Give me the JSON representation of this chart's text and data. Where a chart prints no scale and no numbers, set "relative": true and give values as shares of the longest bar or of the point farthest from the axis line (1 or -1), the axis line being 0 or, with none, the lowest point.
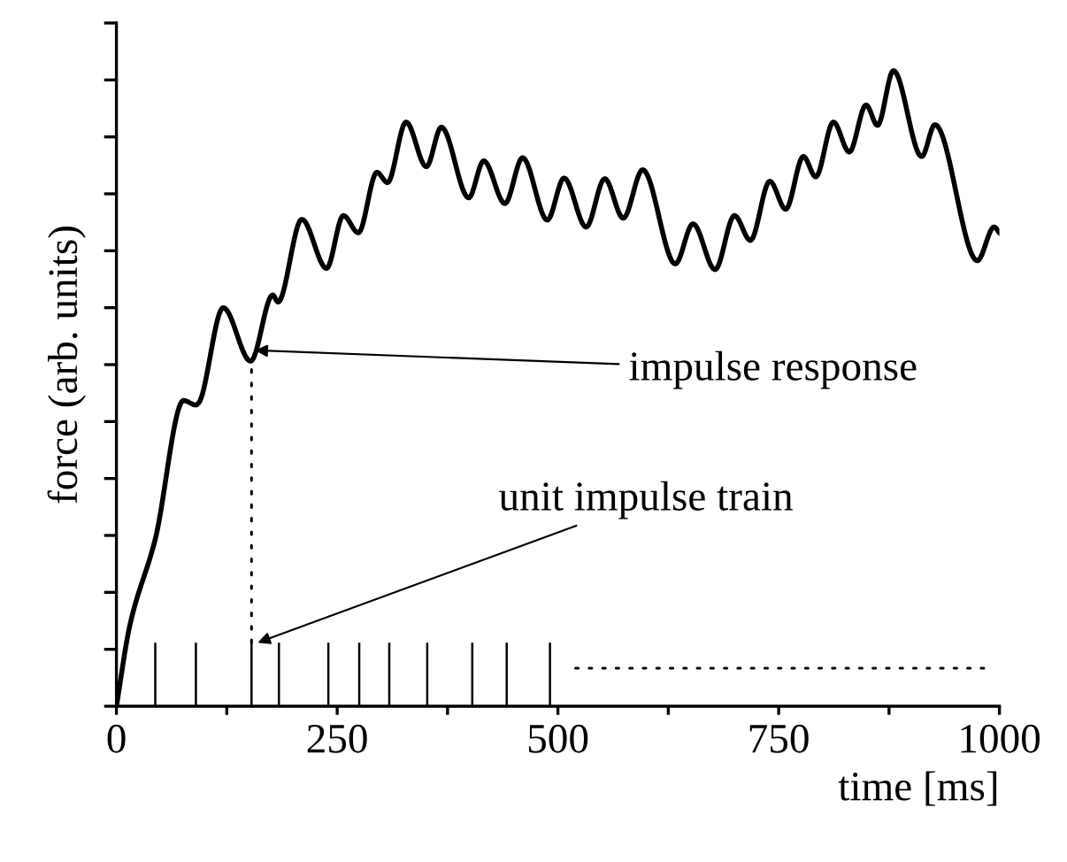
{
  "chart_data": {
    "type": "line",
    "relative": true,
    "xlabel": "time [ms]",
    "ylabel": "force (arb. units)",
    "xlim": [
      0,
      1000
    ],
    "xticks": [
      0,
      {
        "value": 125,
        "label": null
      },
      250,
      {
        "value": 375,
        "label": null
      },
      500,
      {
        "value": 625,
        "label": null
      },
      750,
      {
        "value": 875,
        "label": null
      },
      1000
    ],
    "tick_labels": "x",
    "grid": false,
    "series": [
      {
        "color": "#000000",
        "line_style": "solid",
        "x": [
          0,
          15,
          44,
          76,
          90,
          93,
          121,
          152,
          177,
          183,
          210,
          238,
          257,
          274,
          295,
          307,
          328,
          351,
          368,
          399,
          416,
          440,
          460,
          488,
          507,
          532,
          553,
          574,
          596,
          633,
          653,
          678,
          700,
          718,
          740,
          758,
          778,
          792,
          812,
          830,
          849,
          862,
          880,
          912,
          927,
          975,
          994,
          1000
        ],
        "values": [
          0,
          0.126,
          0.263,
          0.481,
          0.474,
          0.477,
          0.627,
          0.543,
          0.647,
          0.636,
          0.766,
          0.689,
          0.772,
          0.745,
          0.84,
          0.824,
          0.919,
          0.849,
          0.911,
          0.8,
          0.858,
          0.791,
          0.863,
          0.765,
          0.831,
          0.754,
          0.83,
          0.768,
          0.844,
          0.696,
          0.759,
          0.687,
          0.772,
          0.733,
          0.826,
          0.782,
          0.865,
          0.833,
          0.919,
          0.872,
          0.946,
          0.914,
          1.0,
          0.865,
          0.915,
          0.701,
          0.754,
          0.745
        ]
      },
      {
        "type": "bar",
        "color": "#000000",
        "x": [
          44,
          90,
          153,
          184,
          240,
          275,
          309,
          352,
          403,
          442,
          491
        ],
        "values": [
          0.1,
          0.1,
          0.1,
          0.1,
          0.1,
          0.1,
          0.1,
          0.1,
          0.1,
          0.1,
          0.1
        ]
      },
      {
        "type": "line",
        "color": "#000000",
        "line_style": "dotted",
        "x": [
          520,
          985
        ],
        "values": [
          0.06,
          0.06
        ]
      },
      {
        "type": "line",
        "color": "#000000",
        "line_style": "dotted",
        "x": [
          153,
          153
        ],
        "values": [
          0.1,
          0.543
        ]
      }
    ],
    "annotations": [
      {
        "text": "impulse response",
        "x": 157,
        "y": 0.56
      },
      {
        "text": "unit impulse train",
        "x": 160,
        "y": 0.1
      }
    ]
  }
}
